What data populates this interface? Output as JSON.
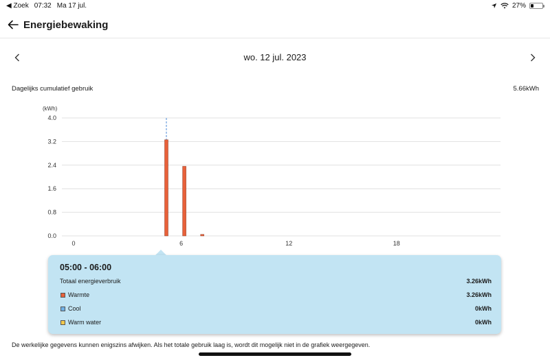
{
  "status": {
    "back_app": "◀ Zoek",
    "time": "07:32",
    "date": "Ma 17 jul.",
    "battery": "27%",
    "battery_level": 0.27
  },
  "header": {
    "title": "Energiebewaking"
  },
  "date_nav": {
    "date": "wo. 12 jul. 2023"
  },
  "summary": {
    "label": "Dagelijks cumulatief gebruik",
    "value": "5.66kWh"
  },
  "chart_data": {
    "type": "bar",
    "title": "",
    "unit_label": "(kWh)",
    "xlabel": "",
    "ylabel": "(kWh)",
    "ylim": [
      0,
      4.0
    ],
    "xlim": [
      0,
      24
    ],
    "y_ticks": [
      "0.0",
      "0.8",
      "1.6",
      "2.4",
      "3.2",
      "4.0"
    ],
    "x_ticks": [
      "0",
      "6",
      "12",
      "18"
    ],
    "x_tick_values": [
      0,
      6,
      12,
      18
    ],
    "y_tick_values": [
      0,
      0.8,
      1.6,
      2.4,
      3.2,
      4.0
    ],
    "grid": true,
    "selected_hour": 5,
    "series": [
      {
        "name": "Warmte",
        "color": "#e8613a",
        "hours": [
          5,
          6,
          7
        ],
        "values": [
          3.26,
          2.36,
          0.05
        ]
      }
    ]
  },
  "tooltip": {
    "time_range": "05:00 - 06:00",
    "total_label": "Totaal energieverbruik",
    "total_value": "3.26kWh",
    "items": [
      {
        "label": "Warmte",
        "value": "3.26kWh",
        "color": "#e8613a"
      },
      {
        "label": "Cool",
        "value": "0kWh",
        "color": "#6fb0e6"
      },
      {
        "label": "Warm water",
        "value": "0kWh",
        "color": "#f2c94c"
      }
    ]
  },
  "disclaimer": "De werkelijke gegevens kunnen enigszins afwijken. Als het totale gebruik laag is, wordt dit mogelijk niet in de grafiek weergegeven."
}
